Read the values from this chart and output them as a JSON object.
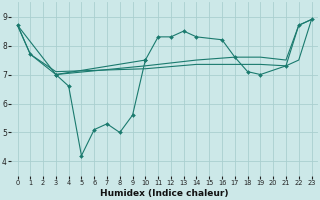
{
  "title": "",
  "xlabel": "Humidex (Indice chaleur)",
  "bg_color": "#cce8e8",
  "grid_color": "#aacfcf",
  "line_color": "#1a7a6e",
  "xlim": [
    -0.5,
    23.5
  ],
  "ylim": [
    3.5,
    9.5
  ],
  "xticks": [
    0,
    1,
    2,
    3,
    4,
    5,
    6,
    7,
    8,
    9,
    10,
    11,
    12,
    13,
    14,
    15,
    16,
    17,
    18,
    19,
    20,
    21,
    22,
    23
  ],
  "yticks": [
    4,
    5,
    6,
    7,
    8,
    9
  ],
  "line_zigzag": {
    "x": [
      0,
      1,
      3,
      10,
      11,
      12,
      13,
      14,
      16,
      17,
      18,
      19,
      21,
      22,
      23
    ],
    "y": [
      8.7,
      7.7,
      7.0,
      7.5,
      8.3,
      8.3,
      8.5,
      8.3,
      8.2,
      7.6,
      7.1,
      7.0,
      7.3,
      8.7,
      8.9
    ]
  },
  "line_flat": {
    "x": [
      0,
      1,
      3,
      10,
      14,
      17,
      19,
      21,
      22,
      23
    ],
    "y": [
      8.7,
      7.7,
      7.1,
      7.2,
      7.35,
      7.35,
      7.35,
      7.3,
      7.5,
      8.9
    ]
  },
  "line_rising": {
    "x": [
      0,
      3,
      10,
      14,
      17,
      19,
      21,
      22,
      23
    ],
    "y": [
      8.7,
      7.0,
      7.3,
      7.5,
      7.6,
      7.6,
      7.5,
      8.7,
      8.9
    ]
  },
  "line_dip": {
    "x": [
      3,
      4,
      5,
      6,
      7,
      8,
      9,
      10
    ],
    "y": [
      7.0,
      6.6,
      4.2,
      5.1,
      5.3,
      5.0,
      5.6,
      7.5
    ]
  }
}
